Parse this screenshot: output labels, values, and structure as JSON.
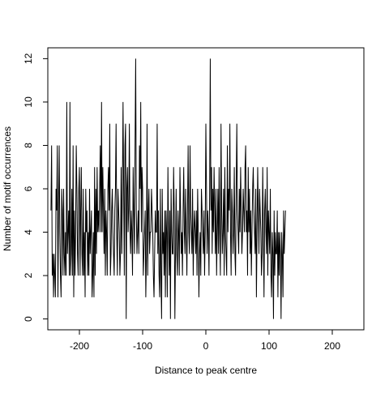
{
  "chart_data": {
    "type": "line",
    "title": "",
    "xlabel": "Distance to peak centre",
    "ylabel": "Number of motif occurrences",
    "xlim": [
      -250,
      250
    ],
    "ylim": [
      -0.5,
      12.5
    ],
    "x_ticks": [
      -200,
      -100,
      0,
      100,
      200
    ],
    "x_tick_labels": [
      "-200",
      "-100",
      "0",
      "100",
      "200"
    ],
    "y_ticks": [
      0,
      2,
      4,
      6,
      8,
      10,
      12
    ],
    "y_tick_labels": [
      "0",
      "2",
      "4",
      "6",
      "8",
      "10",
      "12"
    ],
    "grid": false,
    "series": [
      {
        "x_start": -245,
        "x_step": 1,
        "values": [
          5,
          8,
          2,
          3,
          1,
          3,
          2,
          1,
          6,
          5,
          8,
          1,
          5,
          8,
          4,
          2,
          1,
          6,
          5,
          2,
          6,
          3,
          2,
          4,
          2,
          10,
          3,
          4,
          5,
          2,
          10,
          2,
          3,
          6,
          2,
          8,
          1,
          5,
          2,
          4,
          8,
          6,
          3,
          2,
          6,
          7,
          2,
          5,
          7,
          3,
          2,
          6,
          2,
          4,
          1,
          6,
          4,
          5,
          2,
          4,
          2,
          6,
          3,
          4,
          5,
          1,
          2,
          4,
          1,
          7,
          2,
          6,
          3,
          7,
          4,
          5,
          4,
          6,
          8,
          4,
          10,
          4,
          7,
          5,
          3,
          6,
          2,
          5,
          4,
          2,
          6,
          7,
          5,
          9,
          2,
          3,
          5,
          6,
          4,
          3,
          2,
          5,
          6,
          9,
          4,
          2,
          6,
          5,
          4,
          2,
          3,
          7,
          3,
          6,
          10,
          6,
          2,
          8,
          9,
          0,
          6,
          7,
          4,
          5,
          9,
          4,
          3,
          5,
          4,
          2,
          7,
          5,
          3,
          8,
          12,
          5,
          3,
          4,
          5,
          3,
          8,
          6,
          10,
          4,
          7,
          6,
          2,
          3,
          4,
          5,
          1,
          3,
          9,
          2,
          5,
          6,
          3,
          4,
          4,
          6,
          5,
          4,
          2,
          1,
          3,
          5,
          4,
          4,
          9,
          3,
          5,
          2,
          1,
          6,
          2,
          0,
          6,
          3,
          4,
          2,
          5,
          1,
          5,
          4,
          1,
          7,
          4,
          2,
          5,
          0,
          6,
          4,
          3,
          3,
          7,
          5,
          0,
          3,
          6,
          3,
          2,
          5,
          4,
          2,
          7,
          5,
          3,
          4,
          2,
          5,
          7,
          4,
          3,
          6,
          4,
          2,
          5,
          8,
          4,
          3,
          8,
          5,
          4,
          3,
          6,
          2,
          4,
          5,
          4,
          3,
          5,
          2,
          6,
          4,
          1,
          3,
          4,
          2,
          6,
          5,
          4,
          3,
          5,
          2,
          4,
          9,
          6,
          3,
          5,
          4,
          2,
          6,
          12,
          5,
          7,
          3,
          6,
          4,
          7,
          5,
          3,
          6,
          2,
          4,
          6,
          3,
          7,
          4,
          2,
          9,
          5,
          3,
          4,
          6,
          2,
          7,
          4,
          3,
          2,
          8,
          4,
          6,
          5,
          9,
          4,
          2,
          6,
          5,
          3,
          4,
          7,
          3,
          2,
          6,
          9,
          5,
          4,
          3,
          6,
          4,
          7,
          5,
          3,
          4,
          6,
          5,
          4,
          7,
          8,
          4,
          5,
          2,
          7,
          4,
          6,
          3,
          5,
          2,
          4,
          6,
          7,
          5,
          4,
          3,
          6,
          1,
          4,
          7,
          5,
          3,
          6,
          5,
          4,
          2,
          3,
          7,
          4,
          1,
          5,
          6,
          4,
          3,
          7,
          2,
          5,
          4,
          3,
          6,
          2,
          1,
          4,
          3,
          0,
          5,
          2,
          4,
          3,
          3,
          5,
          1,
          4,
          2,
          4,
          3,
          0,
          4,
          3,
          1,
          5,
          3,
          4,
          5
        ]
      }
    ]
  }
}
